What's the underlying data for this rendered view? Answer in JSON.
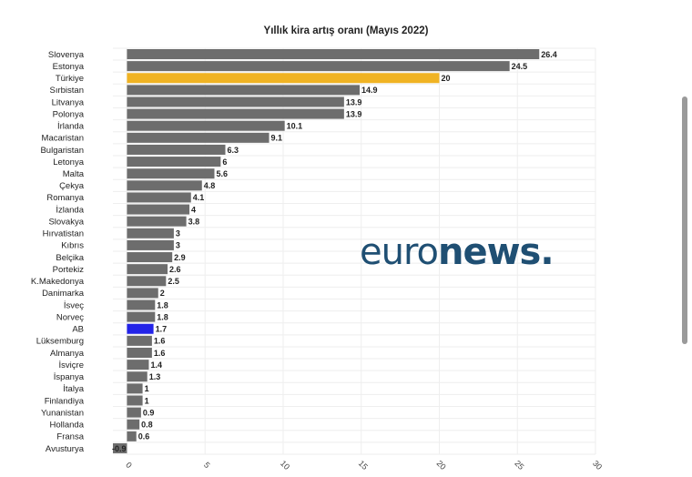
{
  "chart_data": {
    "type": "bar",
    "orientation": "horizontal",
    "title": "Yıllık kira artış oranı (Mayıs 2022)",
    "categories": [
      "Slovenya",
      "Estonya",
      "Türkiye",
      "Sırbistan",
      "Litvanya",
      "Polonya",
      "İrlanda",
      "Macaristan",
      "Bulgaristan",
      "Letonya",
      "Malta",
      "Çekya",
      "Romanya",
      "İzlanda",
      "Slovakya",
      "Hırvatistan",
      "Kıbrıs",
      "Belçika",
      "Portekiz",
      "K.Makedonya",
      "Danimarka",
      "İsveç",
      "Norveç",
      "AB",
      "Lüksemburg",
      "Almanya",
      "İsviçre",
      "İspanya",
      "İtalya",
      "Finlandiya",
      "Yunanistan",
      "Hollanda",
      "Fransa",
      "Avusturya"
    ],
    "values": [
      26.4,
      24.5,
      20,
      14.9,
      13.9,
      13.9,
      10.1,
      9.1,
      6.3,
      6,
      5.6,
      4.8,
      4.1,
      4,
      3.8,
      3,
      3,
      2.9,
      2.6,
      2.5,
      2,
      1.8,
      1.8,
      1.7,
      1.6,
      1.6,
      1.4,
      1.3,
      1,
      1,
      0.9,
      0.8,
      0.6,
      -0.9
    ],
    "value_labels": [
      "26.4",
      "24.5",
      "20",
      "14.9",
      "13.9",
      "13.9",
      "10.1",
      "9.1",
      "6.3",
      "6",
      "5.6",
      "4.8",
      "4.1",
      "4",
      "3.8",
      "3",
      "3",
      "2.9",
      "2.6",
      "2.5",
      "2",
      "1.8",
      "1.8",
      "1.7",
      "1.6",
      "1.6",
      "1.4",
      "1.3",
      "1",
      "1",
      "0.9",
      "0.8",
      "0.6",
      "-0.9"
    ],
    "xlim": [
      -0.9,
      30
    ],
    "x_ticks": [
      "0",
      "5",
      "10",
      "15",
      "20",
      "25",
      "30"
    ],
    "x_tick_values": [
      0,
      5,
      10,
      15,
      20,
      25,
      30
    ],
    "xlabel": "",
    "ylabel": "",
    "grid": true,
    "colors": {
      "default": "#6d6d6d",
      "highlight_turkiye": "#f0b323",
      "highlight_ab": "#2323e8"
    },
    "highlight": {
      "Türkiye": "highlight_turkiye",
      "AB": "highlight_ab"
    }
  },
  "watermark": {
    "part1": "euro",
    "part2": "news."
  }
}
